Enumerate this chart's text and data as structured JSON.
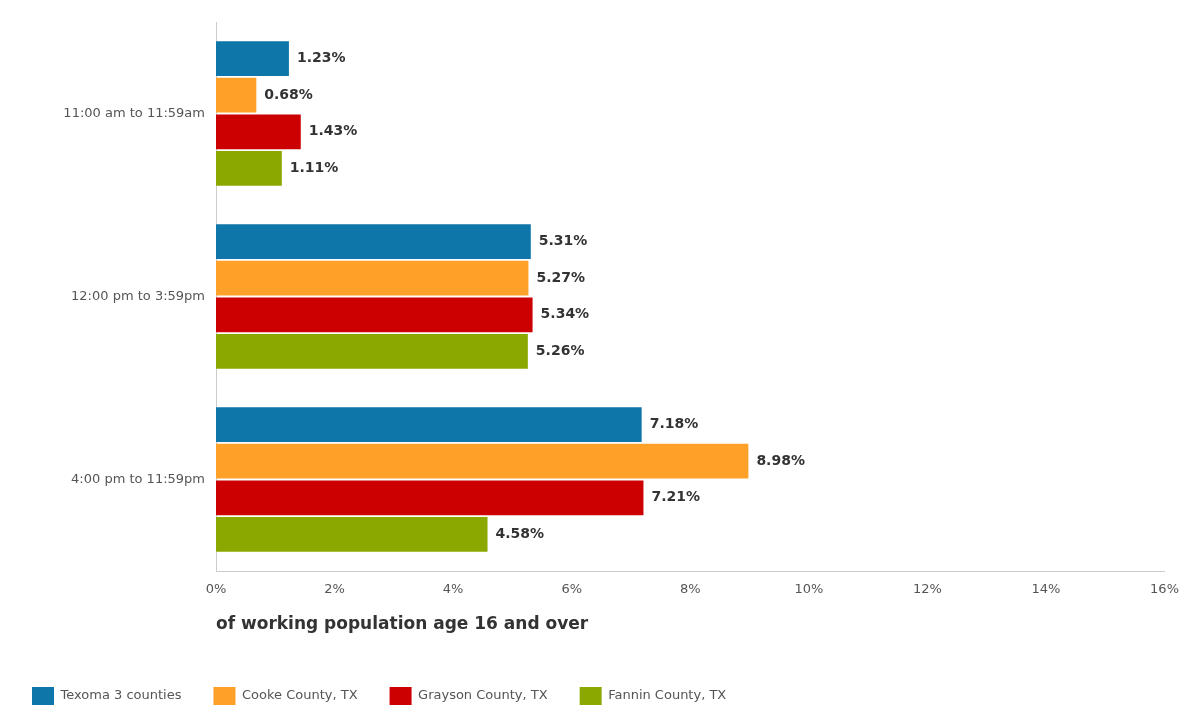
{
  "chart_data": {
    "type": "bar",
    "orientation": "horizontal",
    "categories": [
      "11:00 am to 11:59am",
      "12:00 pm to 3:59pm",
      "4:00 pm to 11:59pm"
    ],
    "series": [
      {
        "name": "Texoma 3 counties",
        "color": "#0e76a8",
        "values": [
          1.23,
          5.31,
          7.18
        ],
        "value_labels": [
          "1.23%",
          "5.31%",
          "7.18%"
        ]
      },
      {
        "name": "Cooke County, TX",
        "color": "#ffa128",
        "values": [
          0.68,
          5.27,
          8.98
        ],
        "value_labels": [
          "0.68%",
          "5.27%",
          "8.98%"
        ]
      },
      {
        "name": "Grayson County, TX",
        "color": "#cc0000",
        "values": [
          1.43,
          5.34,
          7.21
        ],
        "value_labels": [
          "1.43%",
          "5.34%",
          "7.21%"
        ]
      },
      {
        "name": "Fannin County, TX",
        "color": "#8aa800",
        "values": [
          1.11,
          5.26,
          4.58
        ],
        "value_labels": [
          "1.11%",
          "5.26%",
          "4.58%"
        ]
      }
    ],
    "xlabel": "of working population age 16 and over",
    "xlim": [
      0,
      16
    ],
    "xticks": [
      {
        "value": 0,
        "label": "0%"
      },
      {
        "value": 2,
        "label": "2%"
      },
      {
        "value": 4,
        "label": "4%"
      },
      {
        "value": 6,
        "label": "6%"
      },
      {
        "value": 8,
        "label": "8%"
      },
      {
        "value": 10,
        "label": "10%"
      },
      {
        "value": 12,
        "label": "12%"
      },
      {
        "value": 14,
        "label": "14%"
      },
      {
        "value": 16,
        "label": "16%"
      }
    ],
    "grid": false,
    "legend": "bottom"
  }
}
